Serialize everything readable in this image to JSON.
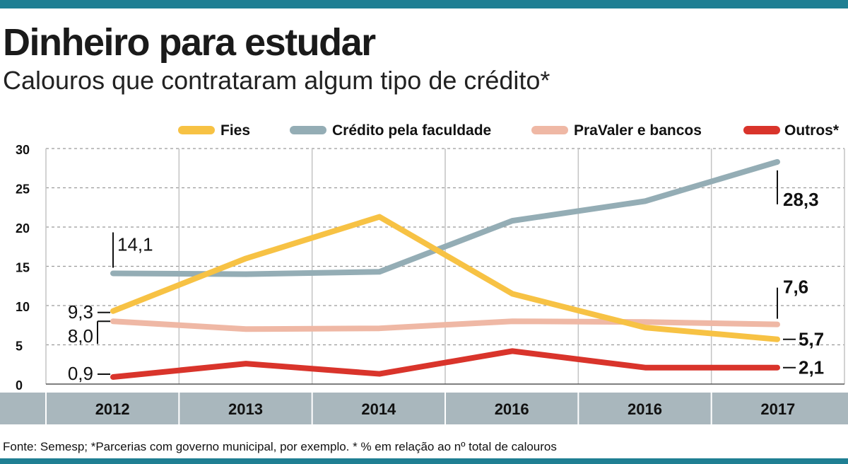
{
  "title": "Dinheiro para estudar",
  "subtitle": "Calouros que contrataram algum tipo de crédito*",
  "source": "Fonte: Semesp; *Parcerias com governo municipal, por exemplo.  * % em relação ao nº total de calouros",
  "colors": {
    "accent_bar": "#1f7f93",
    "axis_band": "#a9b7bd"
  },
  "chart_data": {
    "type": "line",
    "title": "Dinheiro para estudar",
    "subtitle": "Calouros que contrataram algum tipo de crédito*",
    "categories": [
      "2012",
      "2013",
      "2014",
      "2016",
      "2016",
      "2017"
    ],
    "ylim": [
      0,
      30
    ],
    "yticks": [
      "0",
      "5",
      "10",
      "15",
      "20",
      "25",
      "30"
    ],
    "grid": true,
    "legend_position": "top-right",
    "series": [
      {
        "name": "Fies",
        "color": "#f7c244",
        "values": [
          9.3,
          16.0,
          21.3,
          11.5,
          7.2,
          5.7
        ]
      },
      {
        "name": "Crédito pela faculdade",
        "color": "#94adb5",
        "values": [
          14.1,
          14.0,
          14.3,
          20.8,
          23.3,
          28.3
        ]
      },
      {
        "name": "PraValer e bancos",
        "color": "#efb8a5",
        "values": [
          8.0,
          7.0,
          7.1,
          8.0,
          7.9,
          7.6
        ]
      },
      {
        "name": "Outros*",
        "color": "#d9342b",
        "values": [
          0.9,
          2.6,
          1.3,
          4.2,
          2.1,
          2.1
        ]
      }
    ],
    "annotations": [
      {
        "text": "14,1",
        "series": 1,
        "point": 0
      },
      {
        "text": "9,3",
        "series": 0,
        "point": 0
      },
      {
        "text": "8,0",
        "series": 2,
        "point": 0
      },
      {
        "text": "0,9",
        "series": 3,
        "point": 0
      },
      {
        "text": "28,3",
        "series": 1,
        "point": 5
      },
      {
        "text": "7,6",
        "series": 2,
        "point": 5
      },
      {
        "text": "5,7",
        "series": 0,
        "point": 5
      },
      {
        "text": "2,1",
        "series": 3,
        "point": 5
      }
    ]
  }
}
